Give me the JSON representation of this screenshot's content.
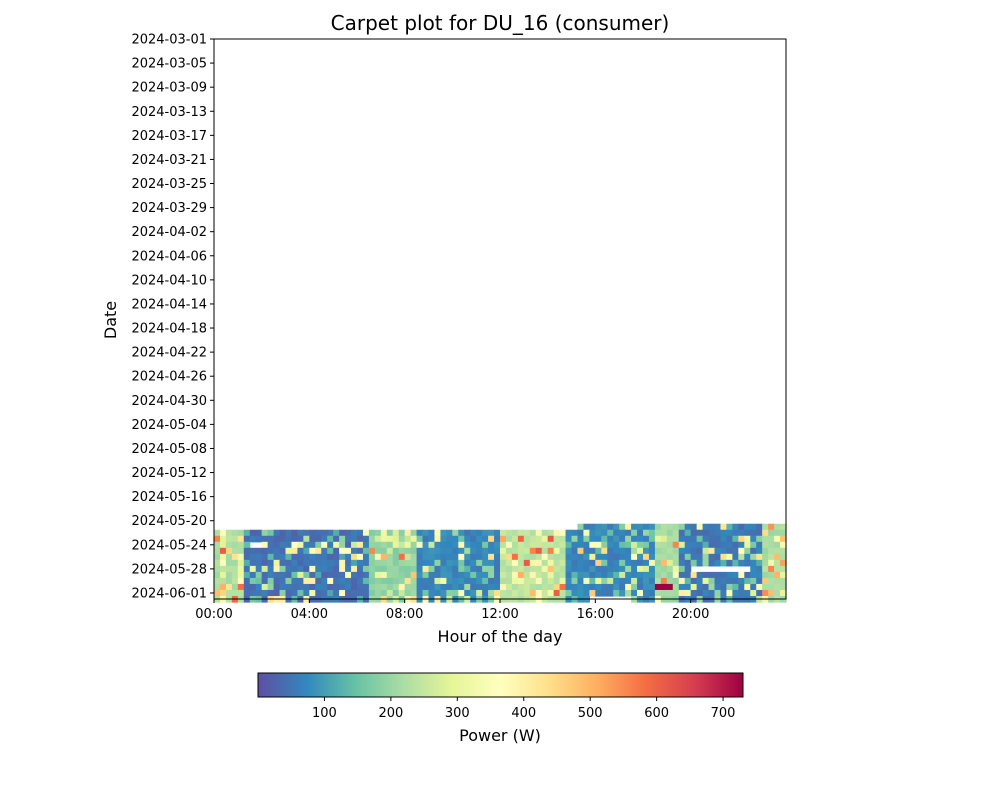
{
  "chart_data": {
    "type": "heatmap",
    "title": "Carpet plot for DU_16 (consumer)",
    "xlabel": "Hour of the day",
    "ylabel": "Date",
    "colorbar_label": "Power (W)",
    "colormap": "Spectral_r",
    "value_range": [
      0,
      730
    ],
    "colorbar_ticks": [
      100,
      200,
      300,
      400,
      500,
      600,
      700
    ],
    "x_ticks": [
      "00:00",
      "04:00",
      "08:00",
      "12:00",
      "16:00",
      "20:00"
    ],
    "x_tick_hours": [
      0,
      4,
      8,
      12,
      16,
      20
    ],
    "x_range_hours": [
      0,
      24
    ],
    "y_ticks": [
      "2024-03-01",
      "2024-03-05",
      "2024-03-09",
      "2024-03-13",
      "2024-03-17",
      "2024-03-21",
      "2024-03-25",
      "2024-03-29",
      "2024-04-02",
      "2024-04-06",
      "2024-04-10",
      "2024-04-14",
      "2024-04-18",
      "2024-04-22",
      "2024-04-26",
      "2024-04-30",
      "2024-05-04",
      "2024-05-08",
      "2024-05-12",
      "2024-05-16",
      "2024-05-20",
      "2024-05-24",
      "2024-05-28",
      "2024-06-01"
    ],
    "y_range_dates": [
      "2024-03-01",
      "2024-06-02"
    ],
    "data_dates": [
      "2024-05-21",
      "2024-05-22",
      "2024-05-23",
      "2024-05-24",
      "2024-05-25",
      "2024-05-26",
      "2024-05-27",
      "2024-05-28",
      "2024-05-29",
      "2024-05-30",
      "2024-05-31",
      "2024-06-01",
      "2024-06-02"
    ],
    "slot_minutes": 15,
    "grid": false,
    "colorbar_position": "bottom"
  }
}
